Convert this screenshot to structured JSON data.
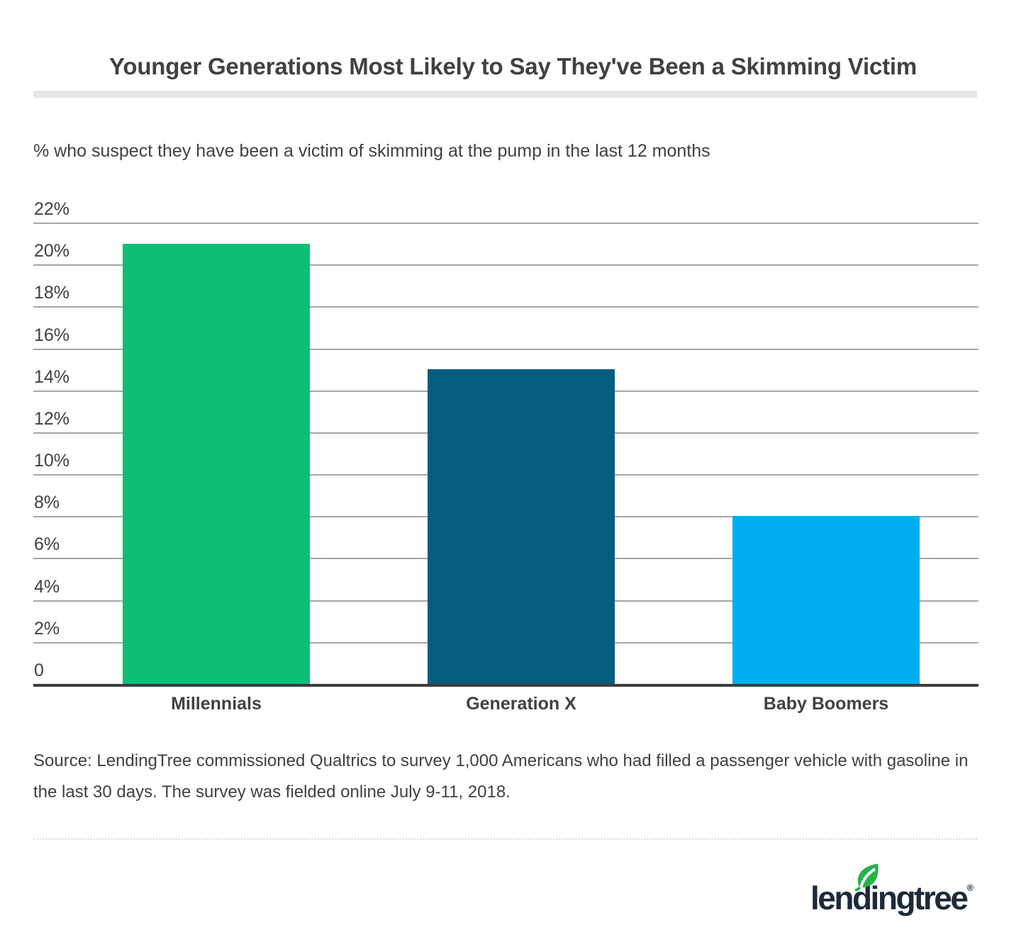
{
  "chart_data": {
    "type": "bar",
    "title": "Younger Generations Most Likely to Say They've Been a Skimming Victim",
    "subtitle": "% who suspect they have been a victim of skimming at the pump in the last 12 months",
    "categories": [
      "Millennials",
      "Generation X",
      "Baby Boomers"
    ],
    "values": [
      21,
      15,
      8
    ],
    "unit": "%",
    "series_colors": [
      "#0bbf77",
      "#045d7f",
      "#01aeef"
    ],
    "ylim": [
      0,
      22
    ],
    "ytick_step": 2,
    "ytick_labels": [
      "0",
      "2%",
      "4%",
      "6%",
      "8%",
      "10%",
      "12%",
      "14%",
      "16%",
      "18%",
      "20%",
      "22%"
    ],
    "grid": true,
    "gridline_color": "#a6a6a6",
    "axis_color": "#3c3c3c",
    "legend": "none",
    "value_labels_shown": false
  },
  "source": {
    "text": "Source: LendingTree commissioned Qualtrics to survey 1,000 Americans who had filled a passenger vehicle with gasoline in the last 30 days. The survey was fielded online July 9-11, 2018."
  },
  "footer": {
    "logo_text": "lendingtree",
    "registered_mark": "®",
    "logo_color": "#1d2a3a",
    "leaf_color": "#24b24c"
  }
}
